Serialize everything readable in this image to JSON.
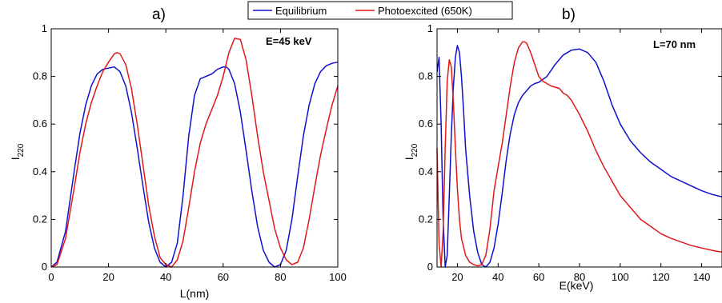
{
  "legend": {
    "entries": [
      {
        "name": "Equilibrium",
        "color": "#1010cc"
      },
      {
        "name": "Photoexcited (650K)",
        "color": "#e01818"
      }
    ],
    "placement": "top-center"
  },
  "chart_data": [
    {
      "type": "line",
      "panel_label": "a)",
      "annotation": "E=45 keV",
      "xlabel": "L(nm)",
      "ylabel": "I",
      "ylabel_sub": "220",
      "xlim": [
        0,
        100
      ],
      "ylim": [
        0,
        1
      ],
      "xticks": [
        0,
        20,
        40,
        60,
        80,
        100
      ],
      "yticks": [
        0,
        0.2,
        0.4,
        0.6,
        0.8,
        1
      ],
      "series": [
        {
          "name": "Equilibrium",
          "color": "#1010cc",
          "x": [
            0,
            2,
            5,
            8,
            10,
            12,
            14,
            16,
            18,
            20,
            22,
            24,
            26,
            28,
            30,
            32,
            34,
            36,
            38,
            40,
            42,
            44,
            46,
            48,
            50,
            52,
            54,
            56,
            58,
            60,
            61,
            62,
            64,
            66,
            68,
            70,
            72,
            74,
            76,
            78,
            80,
            82,
            84,
            86,
            88,
            90,
            92,
            94,
            96,
            98,
            100
          ],
          "y": [
            0,
            0.02,
            0.15,
            0.4,
            0.56,
            0.68,
            0.76,
            0.81,
            0.83,
            0.835,
            0.84,
            0.82,
            0.76,
            0.65,
            0.5,
            0.34,
            0.19,
            0.08,
            0.02,
            0.0,
            0.02,
            0.1,
            0.3,
            0.55,
            0.72,
            0.79,
            0.8,
            0.81,
            0.83,
            0.84,
            0.84,
            0.83,
            0.77,
            0.65,
            0.49,
            0.32,
            0.17,
            0.07,
            0.02,
            0.0,
            0.01,
            0.07,
            0.2,
            0.38,
            0.55,
            0.68,
            0.77,
            0.82,
            0.845,
            0.855,
            0.86
          ]
        },
        {
          "name": "Photoexcited (650K)",
          "color": "#e01818",
          "x": [
            0,
            2,
            5,
            8,
            10,
            12,
            14,
            16,
            18,
            20,
            22,
            23,
            24,
            26,
            28,
            30,
            32,
            34,
            36,
            38,
            40,
            42,
            44,
            46,
            48,
            50,
            52,
            54,
            56,
            58,
            60,
            62,
            64,
            66,
            68,
            70,
            72,
            74,
            76,
            78,
            80,
            82,
            84,
            86,
            88,
            90,
            92,
            94,
            96,
            98,
            100
          ],
          "y": [
            0,
            0.01,
            0.12,
            0.33,
            0.48,
            0.6,
            0.69,
            0.76,
            0.82,
            0.86,
            0.895,
            0.9,
            0.895,
            0.85,
            0.75,
            0.6,
            0.43,
            0.26,
            0.13,
            0.04,
            0.01,
            0.0,
            0.03,
            0.11,
            0.25,
            0.4,
            0.52,
            0.6,
            0.66,
            0.72,
            0.8,
            0.9,
            0.96,
            0.955,
            0.87,
            0.72,
            0.55,
            0.4,
            0.28,
            0.16,
            0.08,
            0.03,
            0.01,
            0.02,
            0.08,
            0.2,
            0.34,
            0.47,
            0.58,
            0.68,
            0.76
          ]
        }
      ]
    },
    {
      "type": "line",
      "panel_label": "b)",
      "annotation": "L=70 nm",
      "xlabel": "E(keV)",
      "ylabel": "I",
      "ylabel_sub": "220",
      "xlim": [
        10,
        150
      ],
      "ylim": [
        0,
        1
      ],
      "xticks": [
        20,
        40,
        60,
        80,
        100,
        120,
        140
      ],
      "yticks": [
        0,
        0.2,
        0.4,
        0.6,
        0.8,
        1
      ],
      "series": [
        {
          "name": "Equilibrium",
          "color": "#1010cc",
          "x": [
            10,
            11,
            12,
            13,
            14,
            15,
            16,
            17,
            18,
            19,
            20,
            21,
            22,
            23,
            24,
            26,
            28,
            30,
            32,
            34,
            36,
            38,
            40,
            42,
            44,
            46,
            48,
            50,
            52,
            54,
            56,
            58,
            60,
            64,
            68,
            72,
            76,
            80,
            84,
            88,
            92,
            96,
            100,
            105,
            110,
            115,
            120,
            125,
            130,
            135,
            140,
            145,
            150
          ],
          "y": [
            0.82,
            0.88,
            0.6,
            0.2,
            0.0,
            0.05,
            0.3,
            0.55,
            0.75,
            0.88,
            0.93,
            0.9,
            0.8,
            0.66,
            0.5,
            0.3,
            0.15,
            0.06,
            0.01,
            0.0,
            0.02,
            0.08,
            0.18,
            0.31,
            0.45,
            0.56,
            0.64,
            0.69,
            0.72,
            0.74,
            0.76,
            0.77,
            0.775,
            0.8,
            0.85,
            0.89,
            0.91,
            0.915,
            0.9,
            0.86,
            0.78,
            0.68,
            0.6,
            0.53,
            0.48,
            0.44,
            0.41,
            0.38,
            0.36,
            0.34,
            0.32,
            0.305,
            0.295
          ]
        },
        {
          "name": "Photoexcited (650K)",
          "color": "#e01818",
          "x": [
            10,
            11,
            12,
            13,
            14,
            15,
            16,
            17,
            18,
            19,
            20,
            21,
            22,
            24,
            26,
            28,
            30,
            32,
            34,
            36,
            38,
            40,
            42,
            44,
            46,
            48,
            50,
            52,
            53,
            54,
            56,
            58,
            60,
            62,
            64,
            66,
            68,
            70,
            72,
            74,
            76,
            80,
            84,
            88,
            92,
            96,
            100,
            105,
            110,
            115,
            120,
            125,
            130,
            135,
            140,
            145,
            150
          ],
          "y": [
            0.5,
            0.1,
            0.0,
            0.15,
            0.5,
            0.78,
            0.87,
            0.84,
            0.7,
            0.5,
            0.33,
            0.2,
            0.12,
            0.05,
            0.02,
            0.01,
            0.005,
            0.01,
            0.05,
            0.16,
            0.32,
            0.42,
            0.52,
            0.64,
            0.76,
            0.86,
            0.92,
            0.945,
            0.945,
            0.94,
            0.9,
            0.85,
            0.8,
            0.78,
            0.77,
            0.76,
            0.755,
            0.75,
            0.73,
            0.72,
            0.7,
            0.64,
            0.57,
            0.49,
            0.42,
            0.36,
            0.3,
            0.25,
            0.2,
            0.17,
            0.14,
            0.12,
            0.105,
            0.09,
            0.08,
            0.07,
            0.063
          ]
        }
      ]
    }
  ]
}
